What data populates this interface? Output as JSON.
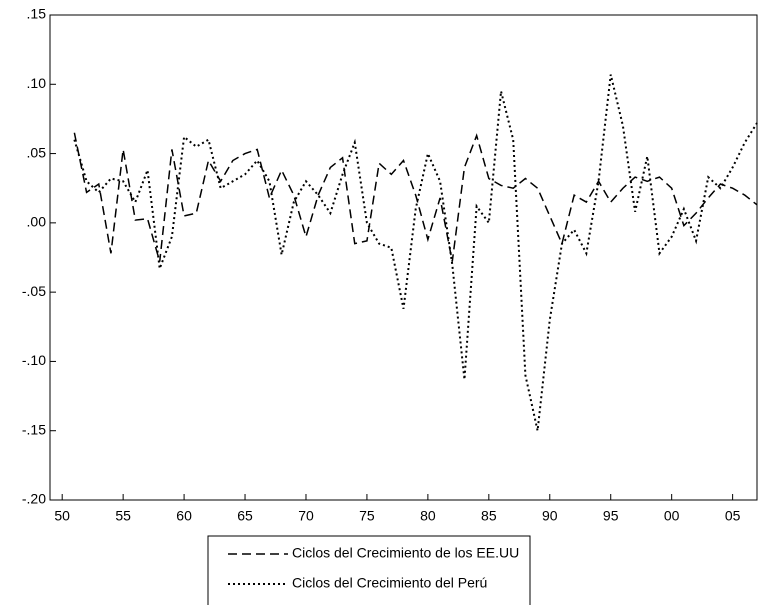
{
  "chart_data": {
    "type": "line",
    "x": [
      1951,
      1952,
      1953,
      1954,
      1955,
      1956,
      1957,
      1958,
      1959,
      1960,
      1961,
      1962,
      1963,
      1964,
      1965,
      1966,
      1967,
      1968,
      1969,
      1970,
      1971,
      1972,
      1973,
      1974,
      1975,
      1976,
      1977,
      1978,
      1979,
      1980,
      1981,
      1982,
      1983,
      1984,
      1985,
      1986,
      1987,
      1988,
      1989,
      1990,
      1991,
      1992,
      1993,
      1994,
      1995,
      1996,
      1997,
      1998,
      1999,
      2000,
      2001,
      2002,
      2003,
      2004,
      2005,
      2006,
      2007
    ],
    "series": [
      {
        "name": "Ciclos del Crecimiento de los EE.UU",
        "color": "#000000",
        "style": "dashed",
        "values": [
          0.065,
          0.022,
          0.028,
          -0.022,
          0.053,
          0.002,
          0.003,
          -0.028,
          0.053,
          0.005,
          0.007,
          0.045,
          0.03,
          0.045,
          0.05,
          0.053,
          0.018,
          0.038,
          0.02,
          -0.01,
          0.02,
          0.04,
          0.047,
          -0.015,
          -0.013,
          0.043,
          0.035,
          0.045,
          0.02,
          -0.012,
          0.018,
          -0.028,
          0.04,
          0.063,
          0.032,
          0.027,
          0.025,
          0.032,
          0.025,
          0.005,
          -0.015,
          0.02,
          0.015,
          0.03,
          0.015,
          0.025,
          0.033,
          0.03,
          0.033,
          0.025,
          -0.002,
          0.007,
          0.018,
          0.028,
          0.025,
          0.02,
          0.013
        ]
      },
      {
        "name": "Ciclos del Crecimiento del Perú",
        "color": "#000000",
        "style": "dotted",
        "values": [
          0.06,
          0.03,
          0.022,
          0.032,
          0.03,
          0.015,
          0.038,
          -0.033,
          -0.01,
          0.062,
          0.055,
          0.06,
          0.025,
          0.03,
          0.035,
          0.045,
          0.03,
          -0.023,
          0.015,
          0.03,
          0.02,
          0.007,
          0.035,
          0.058,
          0.0,
          -0.015,
          -0.018,
          -0.062,
          0.01,
          0.05,
          0.03,
          -0.03,
          -0.113,
          0.012,
          0.0,
          0.095,
          0.06,
          -0.11,
          -0.15,
          -0.07,
          -0.015,
          -0.005,
          -0.022,
          0.03,
          0.107,
          0.07,
          0.008,
          0.048,
          -0.022,
          -0.01,
          0.01,
          -0.013,
          0.033,
          0.025,
          0.04,
          0.058,
          0.072
        ]
      }
    ],
    "xlim": [
      1949,
      2007
    ],
    "xticks": [
      {
        "value": 1950,
        "label": "50"
      },
      {
        "value": 1955,
        "label": "55"
      },
      {
        "value": 1960,
        "label": "60"
      },
      {
        "value": 1965,
        "label": "65"
      },
      {
        "value": 1970,
        "label": "70"
      },
      {
        "value": 1975,
        "label": "75"
      },
      {
        "value": 1980,
        "label": "80"
      },
      {
        "value": 1985,
        "label": "85"
      },
      {
        "value": 1990,
        "label": "90"
      },
      {
        "value": 1995,
        "label": "95"
      },
      {
        "value": 2000,
        "label": "00"
      },
      {
        "value": 2005,
        "label": "05"
      }
    ],
    "ylim": [
      -0.2,
      0.15
    ],
    "yticks": [
      {
        "value": -0.2,
        "label": "-.20"
      },
      {
        "value": -0.15,
        "label": "-.15"
      },
      {
        "value": -0.1,
        "label": "-.10"
      },
      {
        "value": -0.05,
        "label": "-.05"
      },
      {
        "value": 0,
        "label": ".00"
      },
      {
        "value": 0.05,
        "label": ".05"
      },
      {
        "value": 0.1,
        "label": ".10"
      },
      {
        "value": 0.15,
        "label": ".15"
      }
    ],
    "grid": false
  }
}
